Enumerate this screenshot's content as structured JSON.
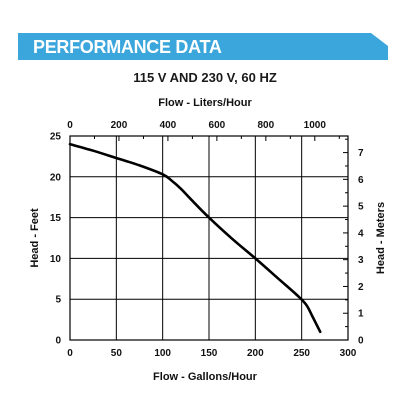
{
  "banner": {
    "title": "PERFORMANCE DATA",
    "color": "#3ba6dc"
  },
  "chart_data": {
    "type": "line",
    "title": "115 V AND 230 V, 60 HZ",
    "xlabel": "Flow - Gallons/Hour",
    "ylabel": "Head - Feet",
    "x2label": "Flow - Liters/Hour",
    "y2label": "Head - Meters",
    "xlim": [
      0,
      300
    ],
    "ylim": [
      0,
      25
    ],
    "x_ticks": [
      "0",
      "50",
      "100",
      "150",
      "200",
      "250",
      "300"
    ],
    "y_ticks": [
      "0",
      "5",
      "10",
      "15",
      "20",
      "25"
    ],
    "x2lim": [
      0,
      1135.6
    ],
    "x2_ticks": [
      "0",
      "200",
      "400",
      "600",
      "800",
      "1000"
    ],
    "y2lim": [
      0,
      7.62
    ],
    "y2_ticks": [
      "0",
      "1",
      "2",
      "3",
      "4",
      "5",
      "6",
      "7"
    ],
    "grid": true,
    "series": [
      {
        "x": [
          0,
          25,
          50,
          75,
          100,
          110,
          120,
          130,
          150,
          175,
          200,
          225,
          245,
          255,
          262,
          270
        ],
        "y": [
          24,
          23.2,
          22.3,
          21.4,
          20.3,
          19.5,
          18.5,
          17.3,
          15.0,
          12.4,
          10.0,
          7.5,
          5.5,
          4.3,
          2.8,
          1.0
        ]
      }
    ]
  }
}
